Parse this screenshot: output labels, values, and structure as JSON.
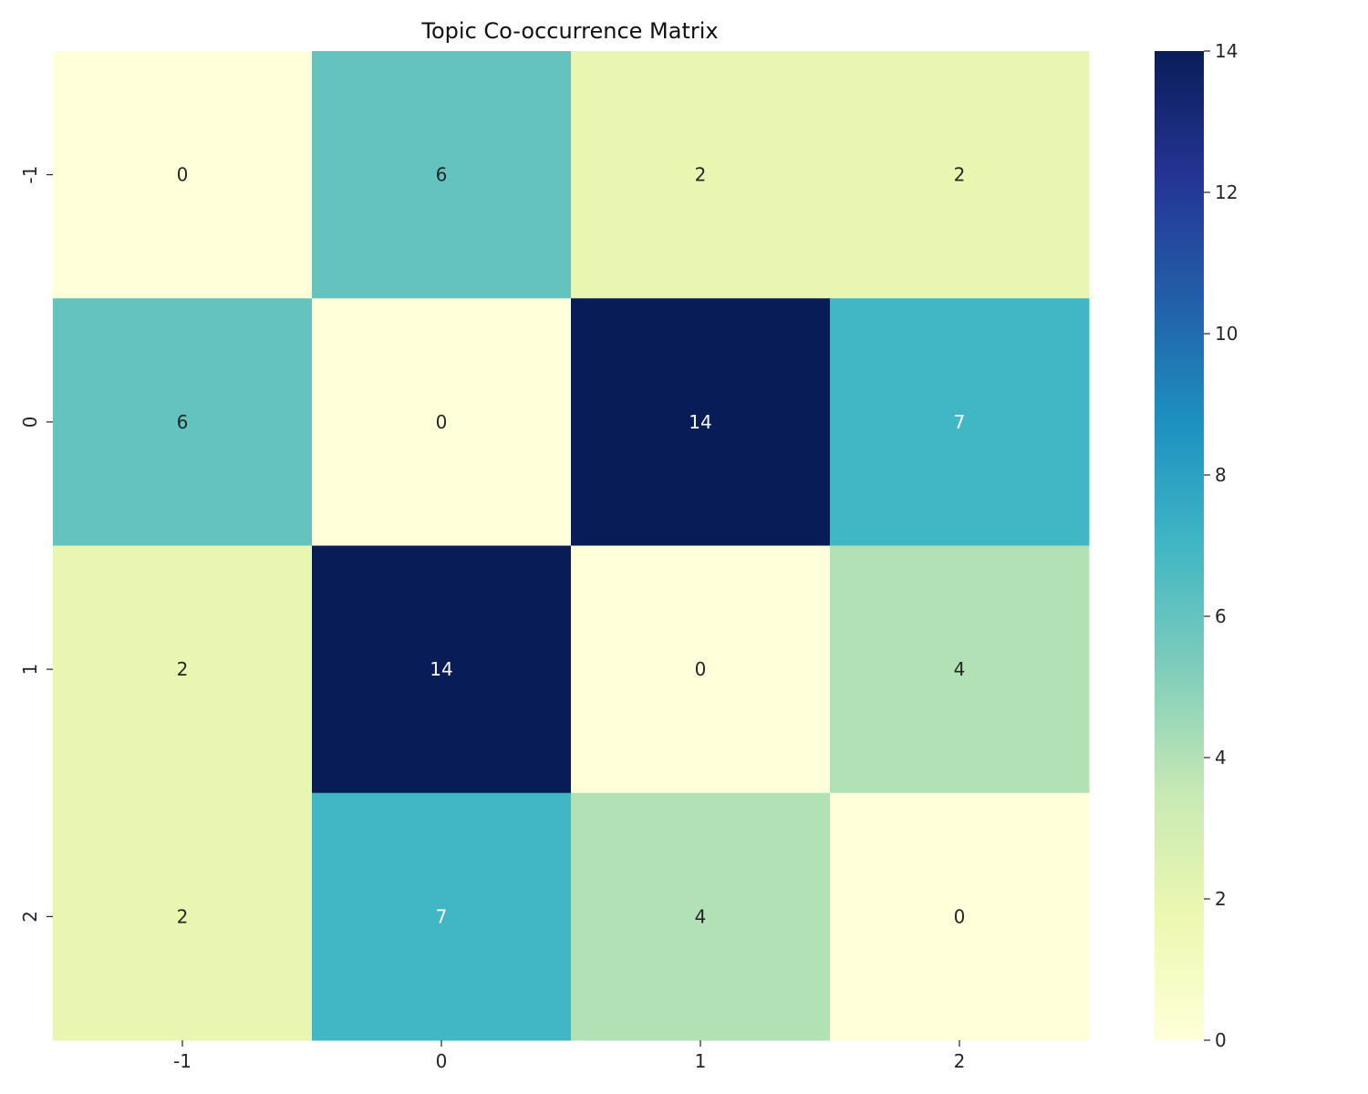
{
  "chart_data": {
    "type": "heatmap",
    "title": "Topic Co-occurrence Matrix",
    "xlabel": "",
    "ylabel": "",
    "x_categories": [
      "-1",
      "0",
      "1",
      "2"
    ],
    "y_categories": [
      "-1",
      "0",
      "1",
      "2"
    ],
    "values": [
      [
        0,
        6,
        2,
        2
      ],
      [
        6,
        0,
        14,
        7
      ],
      [
        2,
        14,
        0,
        4
      ],
      [
        2,
        7,
        4,
        0
      ]
    ],
    "colormap": "YlGnBu",
    "colorbar": {
      "range": [
        0,
        14
      ],
      "ticks": [
        0,
        2,
        4,
        6,
        8,
        10,
        12,
        14
      ]
    },
    "annotations": true,
    "annotation_colors": {
      "dark": "#262626",
      "light": "#ffffff"
    }
  }
}
